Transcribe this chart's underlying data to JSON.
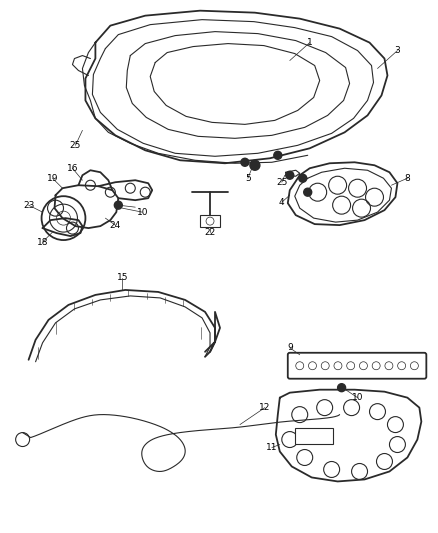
{
  "background_color": "#ffffff",
  "line_color": "#2a2a2a",
  "label_color": "#000000",
  "label_fontsize": 6.5,
  "fig_width": 4.38,
  "fig_height": 5.33,
  "dpi": 100
}
